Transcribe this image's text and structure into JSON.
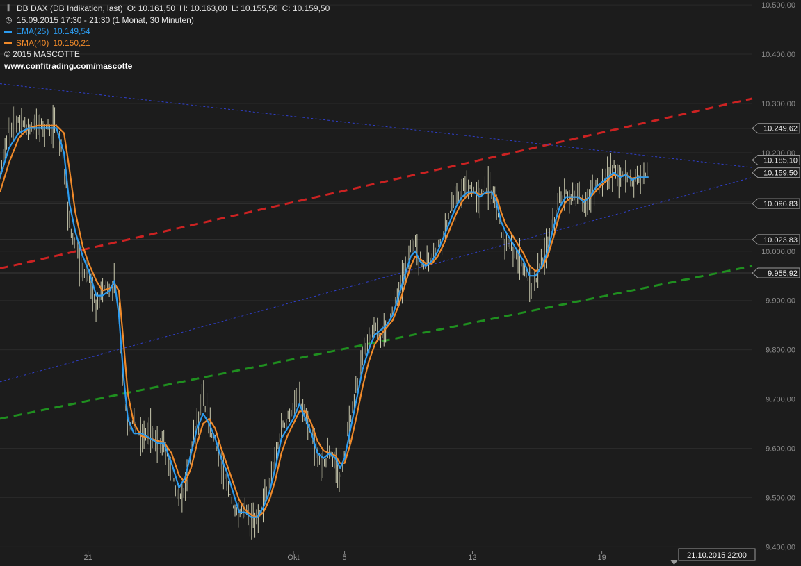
{
  "header": {
    "symbol_icon": "candles-icon",
    "title": "DB DAX (DB Indikation, last)",
    "open": "O: 10.161,50",
    "high": "H: 10.163,00",
    "low": "L: 10.155,50",
    "close": "C: 10.159,50",
    "time_icon": "clock-icon",
    "period": "15.09.2015 17:30 - 21:30 (1 Monat, 30 Minuten)",
    "ema_label": "EMA(25)",
    "ema_value": "10.149,54",
    "sma_label": "SMA(40)",
    "sma_value": "10.150,21",
    "copyright": "© 2015 MASCOTTE",
    "website": "www.confitrading.com/mascotte"
  },
  "colors": {
    "background": "#1c1c1c",
    "ema": "#2c9cf0",
    "sma": "#f08a2a",
    "resistance_trend": "#cc2222",
    "support_trend": "#1f8f1f",
    "channel": "#2f3fcc",
    "candles": "#e8e8c8"
  },
  "chart_data": {
    "type": "line",
    "instrument": "DB DAX (DB Indikation, last)",
    "interval": "30 Minuten",
    "y_axis": {
      "ylim": [
        9385,
        10510
      ],
      "ticks": [
        "9.400,00",
        "9.500,00",
        "9.600,00",
        "9.700,00",
        "9.800,00",
        "9.900,00",
        "10.000,00",
        "10.100,00",
        "10.200,00",
        "10.300,00",
        "10.400,00",
        "10.500,00"
      ],
      "tick_values": [
        9400,
        9500,
        9600,
        9700,
        9800,
        9900,
        10000,
        10100,
        10200,
        10300,
        10400,
        10500
      ]
    },
    "x_axis": {
      "ticks": [
        {
          "label": "21",
          "t": 0.117
        },
        {
          "label": "Okt",
          "t": 0.39
        },
        {
          "label": "5",
          "t": 0.458
        },
        {
          "label": "12",
          "t": 0.628
        },
        {
          "label": "19",
          "t": 0.8
        }
      ],
      "cursor_label": "21.10.2015 22:00",
      "cursor_t": 0.896
    },
    "price_labels": [
      {
        "text": "10.249,62",
        "value": 10249.62
      },
      {
        "text": "10.185,10",
        "value": 10185.1
      },
      {
        "text": "10.159,50",
        "value": 10159.5
      },
      {
        "text": "10.096,83",
        "value": 10096.83
      },
      {
        "text": "10.023,83",
        "value": 10023.83
      },
      {
        "text": "9.955,92",
        "value": 9955.92
      }
    ],
    "horizontal_levels": [
      10249.62,
      10096.83,
      10023.83,
      9955.92
    ],
    "trendlines": [
      {
        "name": "resistance",
        "style": "dashed-thick",
        "t0": 0.0,
        "v0": 9965,
        "t1": 1.0,
        "v1": 10310
      },
      {
        "name": "support",
        "style": "dashed-thick",
        "t0": 0.0,
        "v0": 9660,
        "t1": 1.0,
        "v1": 9970
      },
      {
        "name": "upper-channel",
        "style": "dotted-thin",
        "t0": 0.0,
        "v0": 10340,
        "t1": 1.0,
        "v1": 10170
      },
      {
        "name": "lower-channel",
        "style": "dotted-thin",
        "t0": 0.0,
        "v0": 9735,
        "t1": 1.0,
        "v1": 10150
      }
    ],
    "price_points": [
      [
        0.0,
        10150
      ],
      [
        0.012,
        10250
      ],
      [
        0.025,
        10270
      ],
      [
        0.038,
        10250
      ],
      [
        0.05,
        10260
      ],
      [
        0.062,
        10250
      ],
      [
        0.075,
        10255
      ],
      [
        0.085,
        10180
      ],
      [
        0.092,
        10060
      ],
      [
        0.1,
        10000
      ],
      [
        0.11,
        9960
      ],
      [
        0.118,
        9950
      ],
      [
        0.128,
        9880
      ],
      [
        0.136,
        9930
      ],
      [
        0.146,
        9920
      ],
      [
        0.152,
        9950
      ],
      [
        0.158,
        9870
      ],
      [
        0.164,
        9720
      ],
      [
        0.17,
        9640
      ],
      [
        0.178,
        9660
      ],
      [
        0.188,
        9620
      ],
      [
        0.2,
        9640
      ],
      [
        0.21,
        9600
      ],
      [
        0.218,
        9610
      ],
      [
        0.228,
        9560
      ],
      [
        0.238,
        9490
      ],
      [
        0.246,
        9520
      ],
      [
        0.254,
        9600
      ],
      [
        0.262,
        9660
      ],
      [
        0.27,
        9700
      ],
      [
        0.278,
        9640
      ],
      [
        0.286,
        9620
      ],
      [
        0.294,
        9560
      ],
      [
        0.302,
        9530
      ],
      [
        0.31,
        9480
      ],
      [
        0.318,
        9460
      ],
      [
        0.326,
        9480
      ],
      [
        0.334,
        9450
      ],
      [
        0.342,
        9460
      ],
      [
        0.35,
        9490
      ],
      [
        0.358,
        9520
      ],
      [
        0.366,
        9580
      ],
      [
        0.374,
        9640
      ],
      [
        0.382,
        9660
      ],
      [
        0.39,
        9680
      ],
      [
        0.398,
        9700
      ],
      [
        0.406,
        9660
      ],
      [
        0.414,
        9620
      ],
      [
        0.422,
        9580
      ],
      [
        0.43,
        9570
      ],
      [
        0.438,
        9590
      ],
      [
        0.446,
        9570
      ],
      [
        0.452,
        9530
      ],
      [
        0.458,
        9590
      ],
      [
        0.466,
        9660
      ],
      [
        0.474,
        9720
      ],
      [
        0.482,
        9790
      ],
      [
        0.49,
        9820
      ],
      [
        0.498,
        9840
      ],
      [
        0.506,
        9830
      ],
      [
        0.514,
        9850
      ],
      [
        0.522,
        9880
      ],
      [
        0.53,
        9920
      ],
      [
        0.538,
        9960
      ],
      [
        0.546,
        10000
      ],
      [
        0.552,
        10020
      ],
      [
        0.558,
        9980
      ],
      [
        0.566,
        9970
      ],
      [
        0.574,
        9990
      ],
      [
        0.582,
        10010
      ],
      [
        0.59,
        10040
      ],
      [
        0.598,
        10080
      ],
      [
        0.606,
        10100
      ],
      [
        0.614,
        10120
      ],
      [
        0.622,
        10130
      ],
      [
        0.63,
        10120
      ],
      [
        0.638,
        10110
      ],
      [
        0.646,
        10130
      ],
      [
        0.654,
        10120
      ],
      [
        0.66,
        10100
      ],
      [
        0.666,
        10040
      ],
      [
        0.672,
        10020
      ],
      [
        0.68,
        10000
      ],
      [
        0.688,
        9990
      ],
      [
        0.696,
        9970
      ],
      [
        0.704,
        9930
      ],
      [
        0.712,
        9940
      ],
      [
        0.72,
        9980
      ],
      [
        0.728,
        10010
      ],
      [
        0.736,
        10060
      ],
      [
        0.744,
        10100
      ],
      [
        0.752,
        10120
      ],
      [
        0.76,
        10110
      ],
      [
        0.768,
        10110
      ],
      [
        0.776,
        10090
      ],
      [
        0.784,
        10110
      ],
      [
        0.792,
        10130
      ],
      [
        0.8,
        10140
      ],
      [
        0.808,
        10160
      ],
      [
        0.816,
        10170
      ],
      [
        0.824,
        10150
      ],
      [
        0.832,
        10160
      ],
      [
        0.84,
        10140
      ],
      [
        0.848,
        10155
      ],
      [
        0.856,
        10150
      ],
      [
        0.862,
        10160
      ]
    ],
    "ema_series": [
      [
        0.0,
        10150
      ],
      [
        0.012,
        10210
      ],
      [
        0.025,
        10240
      ],
      [
        0.038,
        10250
      ],
      [
        0.05,
        10250
      ],
      [
        0.062,
        10250
      ],
      [
        0.075,
        10250
      ],
      [
        0.085,
        10200
      ],
      [
        0.092,
        10100
      ],
      [
        0.1,
        10040
      ],
      [
        0.11,
        9990
      ],
      [
        0.118,
        9960
      ],
      [
        0.128,
        9910
      ],
      [
        0.136,
        9910
      ],
      [
        0.146,
        9920
      ],
      [
        0.152,
        9940
      ],
      [
        0.158,
        9870
      ],
      [
        0.164,
        9750
      ],
      [
        0.17,
        9660
      ],
      [
        0.178,
        9630
      ],
      [
        0.188,
        9630
      ],
      [
        0.2,
        9620
      ],
      [
        0.21,
        9610
      ],
      [
        0.218,
        9610
      ],
      [
        0.228,
        9570
      ],
      [
        0.238,
        9520
      ],
      [
        0.246,
        9540
      ],
      [
        0.254,
        9590
      ],
      [
        0.262,
        9640
      ],
      [
        0.27,
        9670
      ],
      [
        0.278,
        9650
      ],
      [
        0.286,
        9620
      ],
      [
        0.294,
        9580
      ],
      [
        0.302,
        9550
      ],
      [
        0.31,
        9510
      ],
      [
        0.318,
        9470
      ],
      [
        0.326,
        9470
      ],
      [
        0.334,
        9460
      ],
      [
        0.342,
        9460
      ],
      [
        0.35,
        9480
      ],
      [
        0.358,
        9510
      ],
      [
        0.366,
        9560
      ],
      [
        0.374,
        9620
      ],
      [
        0.382,
        9640
      ],
      [
        0.39,
        9660
      ],
      [
        0.398,
        9690
      ],
      [
        0.406,
        9660
      ],
      [
        0.414,
        9630
      ],
      [
        0.422,
        9590
      ],
      [
        0.43,
        9580
      ],
      [
        0.438,
        9590
      ],
      [
        0.446,
        9580
      ],
      [
        0.452,
        9560
      ],
      [
        0.458,
        9580
      ],
      [
        0.466,
        9640
      ],
      [
        0.474,
        9700
      ],
      [
        0.482,
        9760
      ],
      [
        0.49,
        9800
      ],
      [
        0.498,
        9830
      ],
      [
        0.506,
        9840
      ],
      [
        0.514,
        9850
      ],
      [
        0.522,
        9870
      ],
      [
        0.53,
        9910
      ],
      [
        0.538,
        9950
      ],
      [
        0.546,
        9990
      ],
      [
        0.552,
        10000
      ],
      [
        0.558,
        9980
      ],
      [
        0.566,
        9970
      ],
      [
        0.574,
        9980
      ],
      [
        0.582,
        10000
      ],
      [
        0.59,
        10030
      ],
      [
        0.598,
        10060
      ],
      [
        0.606,
        10090
      ],
      [
        0.614,
        10110
      ],
      [
        0.622,
        10120
      ],
      [
        0.63,
        10120
      ],
      [
        0.638,
        10110
      ],
      [
        0.646,
        10120
      ],
      [
        0.654,
        10120
      ],
      [
        0.66,
        10100
      ],
      [
        0.666,
        10060
      ],
      [
        0.672,
        10040
      ],
      [
        0.68,
        10020
      ],
      [
        0.688,
        10000
      ],
      [
        0.696,
        9980
      ],
      [
        0.704,
        9950
      ],
      [
        0.712,
        9950
      ],
      [
        0.72,
        9970
      ],
      [
        0.728,
        10000
      ],
      [
        0.736,
        10050
      ],
      [
        0.744,
        10090
      ],
      [
        0.752,
        10110
      ],
      [
        0.76,
        10110
      ],
      [
        0.768,
        10110
      ],
      [
        0.776,
        10100
      ],
      [
        0.784,
        10110
      ],
      [
        0.792,
        10130
      ],
      [
        0.8,
        10140
      ],
      [
        0.808,
        10150
      ],
      [
        0.816,
        10160
      ],
      [
        0.824,
        10150
      ],
      [
        0.832,
        10155
      ],
      [
        0.84,
        10145
      ],
      [
        0.848,
        10150
      ],
      [
        0.856,
        10150
      ],
      [
        0.862,
        10150
      ]
    ],
    "sma_series": [
      [
        0.0,
        10120
      ],
      [
        0.012,
        10180
      ],
      [
        0.025,
        10230
      ],
      [
        0.038,
        10250
      ],
      [
        0.05,
        10255
      ],
      [
        0.062,
        10255
      ],
      [
        0.075,
        10255
      ],
      [
        0.085,
        10240
      ],
      [
        0.092,
        10170
      ],
      [
        0.1,
        10080
      ],
      [
        0.11,
        10010
      ],
      [
        0.118,
        9975
      ],
      [
        0.128,
        9940
      ],
      [
        0.136,
        9920
      ],
      [
        0.146,
        9925
      ],
      [
        0.152,
        9935
      ],
      [
        0.158,
        9920
      ],
      [
        0.164,
        9820
      ],
      [
        0.17,
        9710
      ],
      [
        0.178,
        9650
      ],
      [
        0.188,
        9625
      ],
      [
        0.2,
        9620
      ],
      [
        0.21,
        9615
      ],
      [
        0.218,
        9612
      ],
      [
        0.228,
        9590
      ],
      [
        0.238,
        9545
      ],
      [
        0.246,
        9530
      ],
      [
        0.254,
        9560
      ],
      [
        0.262,
        9610
      ],
      [
        0.27,
        9650
      ],
      [
        0.278,
        9660
      ],
      [
        0.286,
        9640
      ],
      [
        0.294,
        9600
      ],
      [
        0.302,
        9565
      ],
      [
        0.31,
        9530
      ],
      [
        0.318,
        9495
      ],
      [
        0.326,
        9475
      ],
      [
        0.334,
        9465
      ],
      [
        0.342,
        9460
      ],
      [
        0.35,
        9470
      ],
      [
        0.358,
        9495
      ],
      [
        0.366,
        9535
      ],
      [
        0.374,
        9590
      ],
      [
        0.382,
        9625
      ],
      [
        0.39,
        9650
      ],
      [
        0.398,
        9675
      ],
      [
        0.406,
        9675
      ],
      [
        0.414,
        9650
      ],
      [
        0.422,
        9615
      ],
      [
        0.43,
        9595
      ],
      [
        0.438,
        9590
      ],
      [
        0.446,
        9585
      ],
      [
        0.452,
        9570
      ],
      [
        0.458,
        9570
      ],
      [
        0.466,
        9610
      ],
      [
        0.474,
        9665
      ],
      [
        0.482,
        9725
      ],
      [
        0.49,
        9775
      ],
      [
        0.498,
        9810
      ],
      [
        0.506,
        9830
      ],
      [
        0.514,
        9845
      ],
      [
        0.522,
        9860
      ],
      [
        0.53,
        9890
      ],
      [
        0.538,
        9930
      ],
      [
        0.546,
        9970
      ],
      [
        0.552,
        9990
      ],
      [
        0.558,
        9985
      ],
      [
        0.566,
        9975
      ],
      [
        0.574,
        9975
      ],
      [
        0.582,
        9990
      ],
      [
        0.59,
        10015
      ],
      [
        0.598,
        10045
      ],
      [
        0.606,
        10075
      ],
      [
        0.614,
        10100
      ],
      [
        0.622,
        10115
      ],
      [
        0.63,
        10120
      ],
      [
        0.638,
        10115
      ],
      [
        0.646,
        10118
      ],
      [
        0.654,
        10120
      ],
      [
        0.66,
        10110
      ],
      [
        0.666,
        10080
      ],
      [
        0.672,
        10055
      ],
      [
        0.68,
        10035
      ],
      [
        0.688,
        10015
      ],
      [
        0.696,
        9995
      ],
      [
        0.704,
        9970
      ],
      [
        0.712,
        9960
      ],
      [
        0.72,
        9965
      ],
      [
        0.728,
        9990
      ],
      [
        0.736,
        10030
      ],
      [
        0.744,
        10075
      ],
      [
        0.752,
        10100
      ],
      [
        0.76,
        10110
      ],
      [
        0.768,
        10110
      ],
      [
        0.776,
        10105
      ],
      [
        0.784,
        10108
      ],
      [
        0.792,
        10122
      ],
      [
        0.8,
        10135
      ],
      [
        0.808,
        10145
      ],
      [
        0.816,
        10155
      ],
      [
        0.824,
        10152
      ],
      [
        0.832,
        10155
      ],
      [
        0.84,
        10148
      ],
      [
        0.848,
        10150
      ],
      [
        0.856,
        10150
      ],
      [
        0.862,
        10150
      ]
    ]
  }
}
